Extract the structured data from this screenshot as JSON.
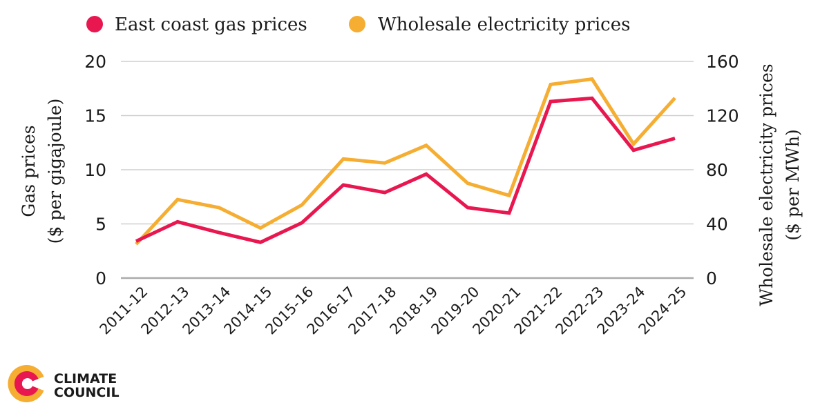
{
  "chart_data": {
    "type": "line",
    "title": "",
    "categories": [
      "2011-12",
      "2012-13",
      "2013-14",
      "2014-15",
      "2015-16",
      "2016-17",
      "2017-18",
      "2018-19",
      "2019-20",
      "2020-21",
      "2021-22",
      "2022-23",
      "2023-24",
      "2024-25"
    ],
    "series": [
      {
        "name": "East coast gas prices",
        "axis": "left",
        "color": "#E8174F",
        "values": [
          3.4,
          5.2,
          4.2,
          3.3,
          5.1,
          8.6,
          7.9,
          9.6,
          6.5,
          6.0,
          16.3,
          16.6,
          11.8,
          12.9
        ]
      },
      {
        "name": "Wholesale electricity prices",
        "axis": "right",
        "color": "#F5AD32",
        "values": [
          25,
          58,
          52,
          37,
          54,
          88,
          85,
          98,
          70,
          61,
          143,
          147,
          99,
          133
        ]
      }
    ],
    "y_left": {
      "label_line1": "Gas prices",
      "label_line2": "($ per gigajoule)",
      "ylim": [
        0,
        20
      ],
      "ticks": [
        0,
        5,
        10,
        15,
        20
      ]
    },
    "y_right": {
      "label_line1": "Wholesale electricity prices",
      "label_line2": "($ per MWh)",
      "ylim": [
        0,
        160
      ],
      "ticks": [
        0,
        40,
        80,
        120,
        160
      ]
    },
    "xlabel": "",
    "grid": true,
    "legend_position": "top-left"
  },
  "logo": {
    "line1": "CLIMATE",
    "line2": "COUNCIL",
    "colors": {
      "outer": "#F5AD32",
      "inner": "#E8174F"
    }
  }
}
